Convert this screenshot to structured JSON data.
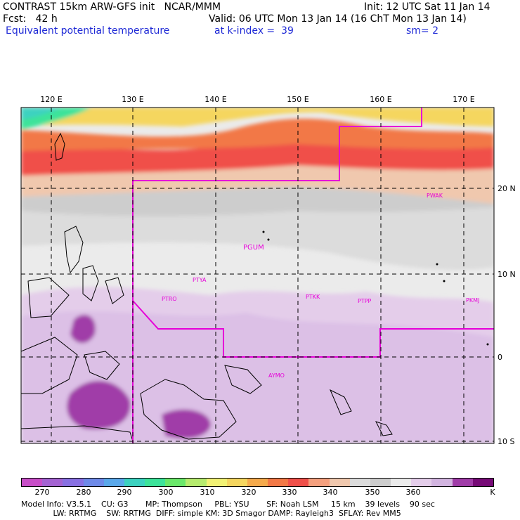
{
  "header": {
    "line1_left": "CONTRAST 15km ARW-GFS init   NCAR/MMM",
    "line1_right": "Init: 12 UTC Sat 11 Jan 14",
    "line2_fcst": "Fcst:   42 h",
    "line2_valid": "Valid: 06 UTC Mon 13 Jan 14 (16 ChT Mon 13 Jan 14)",
    "line3_field": "Equivalent potential temperature",
    "line3_level": "at k-index =  39",
    "line3_smooth": "sm= 2"
  },
  "map": {
    "lon_labels": [
      "120 E",
      "130 E",
      "140 E",
      "150 E",
      "160 E",
      "170 E"
    ],
    "lat_labels": [
      "20 N",
      "10 N",
      "0",
      "10 S"
    ],
    "stations": [
      "PWAK",
      "PGUM",
      "PTYA",
      "PTRO",
      "PTKK",
      "PTPP",
      "PKMJ",
      "AYMO"
    ],
    "line_color": "#e600d8"
  },
  "colorbar": {
    "colors": [
      "#c84ec8",
      "#a463d2",
      "#8870e2",
      "#6e8ae8",
      "#5aa8ea",
      "#3cd2c0",
      "#3ce39a",
      "#6ae86a",
      "#b6ec6e",
      "#f2f274",
      "#f5d65f",
      "#f5aa4c",
      "#f27846",
      "#f0504a",
      "#f5a07e",
      "#f0c8ae",
      "#dcdcdc",
      "#cdcdcd",
      "#ebebeb",
      "#e4cdea",
      "#d2b4e0",
      "#a03ca8",
      "#760a76"
    ],
    "labels": [
      "270",
      "280",
      "290",
      "300",
      "310",
      "320",
      "330",
      "340",
      "350",
      "360",
      "K"
    ]
  },
  "footer": {
    "line1": "Model Info: V3.5.1    CU: G3       MP: Thompson     PBL: YSU       SF: Noah LSM     15 km    39 levels    90 sec",
    "line2": "             LW: RRTMG    SW: RRTMG  DIFF: simple KM: 3D Smagor DAMP: Rayleigh3  SFLAY: Rev MM5"
  }
}
